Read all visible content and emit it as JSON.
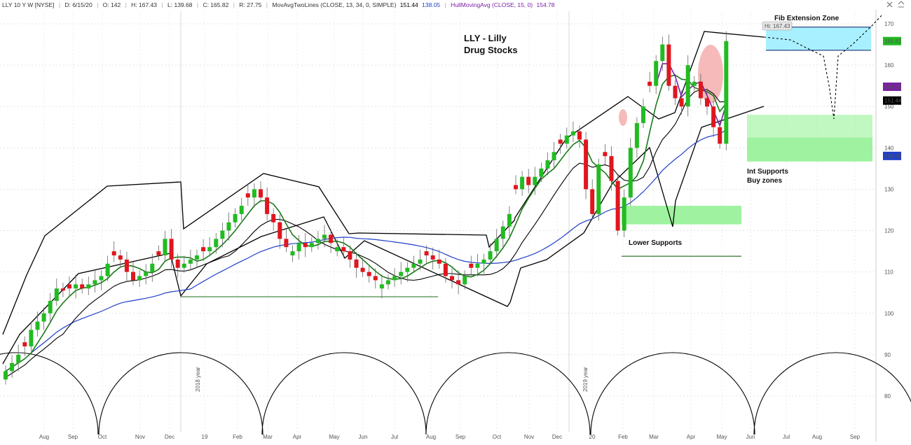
{
  "header": {
    "symbol": "LLY 10 Y W [NYSE]",
    "date": "D: 6/15/20",
    "open": "O: 142",
    "high": "H: 167.43",
    "low": "L: 139.68",
    "close": "C: 165.82",
    "range": "R: 27.75",
    "ma_label": "MovAvgTwoLines (CLOSE, 13, 34, 0, SIMPLE)",
    "ma_val1": "151.44",
    "ma_val2": "138.05",
    "hull_label": "HullMovingAvg (CLOSE, 15, 0)",
    "hull_val": "154.78"
  },
  "colors": {
    "up_candle": "#22bb22",
    "down_candle": "#e0161e",
    "ma13": "#1a7a1a",
    "ma34_line": "#000000",
    "ma_long": "#1f3fc8",
    "hull": "#7a1fa3",
    "support_zone": "#8ef08e",
    "fib_zone": "#a8f0ff"
  },
  "chart_data": {
    "type": "candlestick",
    "title": "LLY - Lilly Drug Stocks",
    "ylim": [
      74,
      174
    ],
    "y_ticks": [
      80,
      90,
      100,
      110,
      120,
      130,
      140,
      150,
      160,
      170
    ],
    "x_tick_labels": [
      "Aug",
      "Sep",
      "Oct",
      "Nov",
      "Dec",
      "19",
      "Feb",
      "Mar",
      "Apr",
      "May",
      "Jun",
      "Jul",
      "Aug",
      "Sep",
      "Oct",
      "Nov",
      "Dec",
      "20",
      "Feb",
      "Mar",
      "Apr",
      "May",
      "Jun",
      "Jul",
      "Aug",
      "Sep"
    ],
    "year_markers": [
      "2018 year",
      "2019 year"
    ],
    "price_labels": {
      "close": "165.82",
      "hull": "154.78",
      "ma34": "151.44",
      "ma_long": "138.05",
      "high_tooltip": "Hi: 167.43"
    },
    "closes": [
      86,
      88,
      90,
      92,
      96,
      98,
      100,
      103,
      106,
      105.5,
      106,
      107,
      106,
      107,
      108,
      109,
      112,
      114,
      113,
      110,
      108,
      109,
      110,
      112,
      114,
      118,
      113,
      111,
      112,
      113,
      114,
      115,
      116,
      118,
      120,
      122,
      124,
      126,
      128,
      130,
      128,
      124,
      122,
      118,
      116,
      115,
      117,
      116,
      117,
      118,
      119,
      117,
      116,
      115,
      113,
      111,
      110,
      109,
      108,
      107,
      108,
      109,
      110,
      111,
      112,
      113,
      114,
      113,
      112,
      109,
      108,
      107,
      109,
      111,
      112,
      113,
      115,
      118,
      121,
      124,
      130,
      133,
      131,
      133,
      135,
      137,
      139,
      141,
      143,
      144,
      142,
      130,
      124,
      136,
      138,
      132,
      120,
      128,
      140,
      146,
      150,
      155,
      161,
      165,
      155,
      152,
      150,
      160,
      156,
      152,
      150,
      145,
      141,
      165.82
    ]
  },
  "annotations": {
    "title_line1": "LLY - Lilly",
    "title_line2": "Drug Stocks",
    "fib_zone": "Fib Extension Zone",
    "int_supports_1": "Int Supports",
    "int_supports_2": "Buy zones",
    "lower_supports": "Lower Supports"
  }
}
